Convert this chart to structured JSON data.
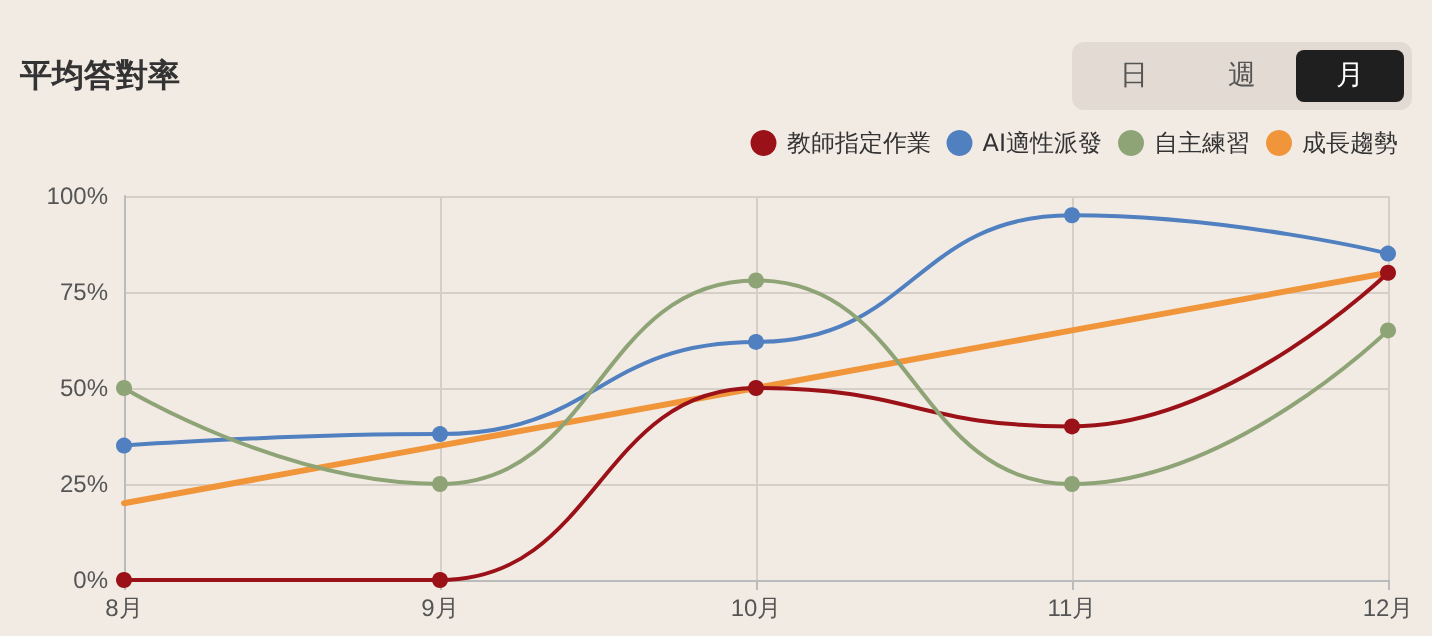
{
  "chart_data": {
    "type": "line",
    "title": "平均答對率",
    "annotations": [
      "日",
      "週",
      "月"
    ],
    "categories": [
      "8月",
      "9月",
      "10月",
      "11月",
      "12月"
    ],
    "series": [
      {
        "name": "教師指定作業",
        "color": "#9b1118",
        "values": [
          0,
          0,
          50,
          40,
          80
        ]
      },
      {
        "name": "AI適性派發",
        "color": "#5080c0",
        "values": [
          35,
          38,
          62,
          95,
          85
        ]
      },
      {
        "name": "自主練習",
        "color": "#8fa476",
        "values": [
          50,
          25,
          78,
          25,
          65
        ]
      },
      {
        "name": "成長趨勢",
        "color": "#f0953a",
        "values": [
          20,
          35,
          50,
          65,
          80
        ],
        "marker": "none"
      }
    ],
    "ylim": [
      0,
      100
    ],
    "yticks": [
      {
        "value": 0,
        "label": "0%"
      },
      {
        "value": 25,
        "label": "25%"
      },
      {
        "value": 50,
        "label": "50%"
      },
      {
        "value": 75,
        "label": "75%"
      },
      {
        "value": 100,
        "label": "100%"
      }
    ],
    "grid": true,
    "legend": "top right",
    "marker": "circle",
    "line_style": "solid"
  }
}
